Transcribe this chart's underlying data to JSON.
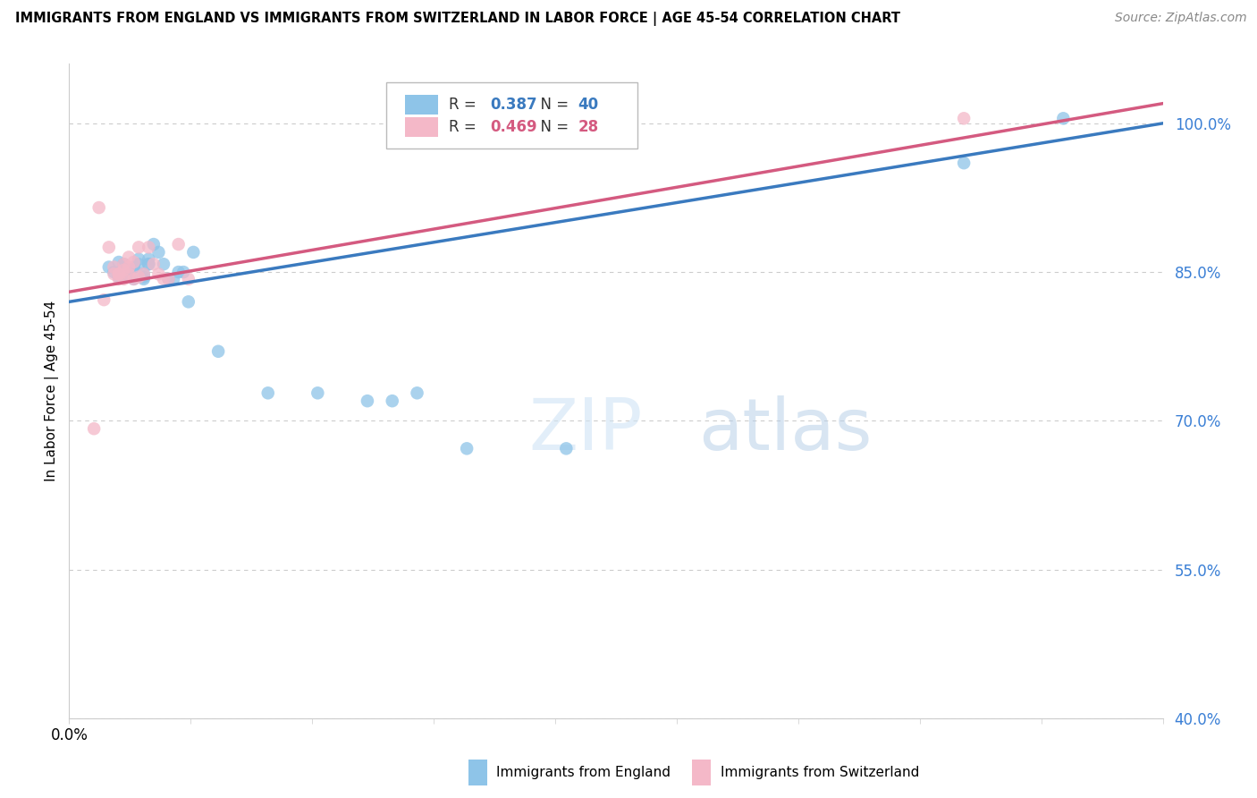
{
  "title": "IMMIGRANTS FROM ENGLAND VS IMMIGRANTS FROM SWITZERLAND IN LABOR FORCE | AGE 45-54 CORRELATION CHART",
  "source": "Source: ZipAtlas.com",
  "ylabel": "In Labor Force | Age 45-54",
  "xlim": [
    0.0,
    0.022
  ],
  "ylim": [
    0.4,
    1.06
  ],
  "ytick_labels": [
    "40.0%",
    "55.0%",
    "70.0%",
    "85.0%",
    "100.0%"
  ],
  "ytick_values": [
    0.4,
    0.55,
    0.7,
    0.85,
    1.0
  ],
  "blue_scatter_x": [
    0.0008,
    0.0009,
    0.001,
    0.001,
    0.0011,
    0.0011,
    0.0012,
    0.0012,
    0.0013,
    0.0013,
    0.0014,
    0.0014,
    0.0015,
    0.0015,
    0.0016,
    0.0016,
    0.0017,
    0.0018,
    0.002,
    0.0021,
    0.0022,
    0.0023,
    0.0024,
    0.0025,
    0.0011,
    0.0012,
    0.0013,
    0.0015,
    0.0016,
    0.0019,
    0.003,
    0.004,
    0.005,
    0.006,
    0.0065,
    0.007,
    0.008,
    0.01,
    0.018,
    0.02
  ],
  "blue_scatter_y": [
    0.855,
    0.85,
    0.845,
    0.86,
    0.85,
    0.858,
    0.852,
    0.846,
    0.855,
    0.843,
    0.858,
    0.863,
    0.848,
    0.843,
    0.863,
    0.858,
    0.878,
    0.87,
    0.843,
    0.843,
    0.85,
    0.85,
    0.82,
    0.87,
    0.848,
    0.853,
    0.855,
    0.845,
    0.858,
    0.858,
    0.77,
    0.728,
    0.728,
    0.72,
    0.72,
    0.728,
    0.672,
    0.672,
    0.96,
    1.005
  ],
  "pink_scatter_x": [
    0.0005,
    0.0006,
    0.0007,
    0.0008,
    0.0009,
    0.0009,
    0.001,
    0.001,
    0.0011,
    0.0011,
    0.0012,
    0.0012,
    0.0013,
    0.0014,
    0.0015,
    0.0016,
    0.0017,
    0.0018,
    0.0019,
    0.002,
    0.0022,
    0.0024,
    0.001,
    0.0011,
    0.0012,
    0.0013,
    0.0014,
    0.018
  ],
  "pink_scatter_y": [
    0.692,
    0.915,
    0.822,
    0.875,
    0.855,
    0.848,
    0.843,
    0.848,
    0.843,
    0.858,
    0.865,
    0.848,
    0.843,
    0.875,
    0.848,
    0.875,
    0.858,
    0.848,
    0.843,
    0.843,
    0.878,
    0.843,
    0.848,
    0.852,
    0.855,
    0.86,
    0.845,
    1.005
  ],
  "blue_R": 0.387,
  "blue_N": 40,
  "pink_R": 0.469,
  "pink_N": 28,
  "blue_color": "#8ec4e8",
  "pink_color": "#f4b8c8",
  "blue_line_color": "#3a7abf",
  "pink_line_color": "#d45a80",
  "legend_label_blue": "Immigrants from England",
  "legend_label_pink": "Immigrants from Switzerland",
  "watermark_zip": "ZIP",
  "watermark_atlas": "atlas"
}
